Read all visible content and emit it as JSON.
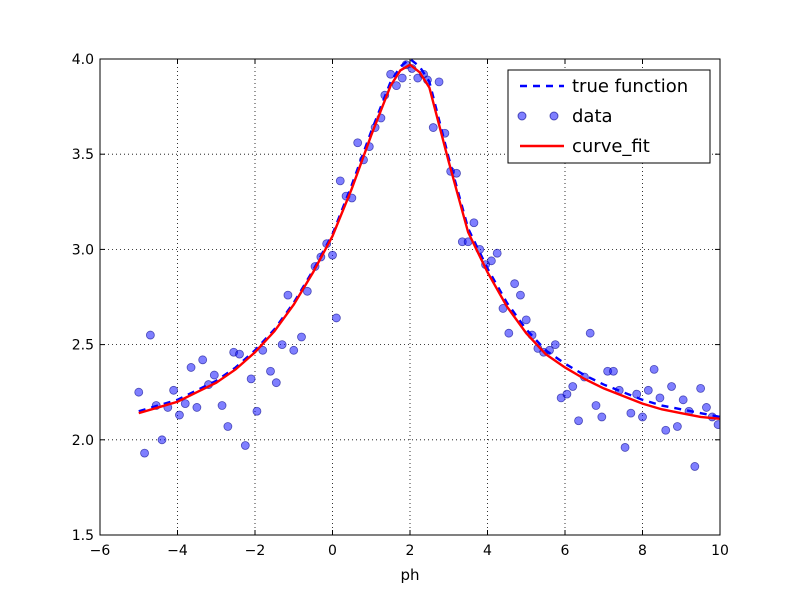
{
  "chart_data": {
    "type": "line",
    "title": "",
    "xlabel": "ph",
    "ylabel": "",
    "xlim": [
      -6,
      10
    ],
    "ylim": [
      1.5,
      4.0
    ],
    "xticks": [
      -6,
      -4,
      -2,
      0,
      2,
      4,
      6,
      8,
      10
    ],
    "xtick_labels": [
      "−6",
      "−4",
      "−2",
      "0",
      "2",
      "4",
      "6",
      "8",
      "10"
    ],
    "yticks": [
      1.5,
      2.0,
      2.5,
      3.0,
      3.5,
      4.0
    ],
    "ytick_labels": [
      "1.5",
      "2.0",
      "2.5",
      "3.0",
      "3.5",
      "4.0"
    ],
    "grid": true,
    "legend_position": "top-right",
    "series": [
      {
        "name": "true function",
        "style": "dashed-line",
        "color": "#0000ff",
        "x": [
          -5.0,
          -4.5,
          -4.0,
          -3.5,
          -3.0,
          -2.5,
          -2.0,
          -1.5,
          -1.0,
          -0.5,
          0.0,
          0.5,
          1.0,
          1.5,
          1.75,
          2.0,
          2.25,
          2.5,
          3.0,
          3.5,
          4.0,
          4.5,
          5.0,
          5.5,
          6.0,
          6.5,
          7.0,
          7.5,
          8.0,
          8.5,
          9.0,
          9.5,
          10.0
        ],
        "y": [
          2.15,
          2.18,
          2.21,
          2.26,
          2.31,
          2.38,
          2.47,
          2.58,
          2.72,
          2.89,
          3.08,
          3.34,
          3.62,
          3.88,
          3.96,
          4.0,
          3.96,
          3.88,
          3.48,
          3.11,
          2.9,
          2.72,
          2.58,
          2.47,
          2.4,
          2.34,
          2.29,
          2.25,
          2.21,
          2.18,
          2.16,
          2.14,
          2.12
        ]
      },
      {
        "name": "data",
        "style": "markers",
        "color": "#0000ff",
        "x": [
          -5.0,
          -4.85,
          -4.7,
          -4.55,
          -4.4,
          -4.25,
          -4.1,
          -3.95,
          -3.8,
          -3.65,
          -3.5,
          -3.35,
          -3.2,
          -3.05,
          -2.85,
          -2.7,
          -2.55,
          -2.4,
          -2.25,
          -2.1,
          -1.95,
          -1.8,
          -1.6,
          -1.45,
          -1.3,
          -1.15,
          -1.0,
          -0.8,
          -0.65,
          -0.45,
          -0.3,
          -0.15,
          0.0,
          0.1,
          0.2,
          0.35,
          0.5,
          0.65,
          0.8,
          0.95,
          1.1,
          1.25,
          1.35,
          1.5,
          1.65,
          1.8,
          1.9,
          2.05,
          2.2,
          2.35,
          2.45,
          2.6,
          2.75,
          2.9,
          3.05,
          3.2,
          3.35,
          3.5,
          3.65,
          3.8,
          3.95,
          4.1,
          4.25,
          4.4,
          4.55,
          4.7,
          4.85,
          5.0,
          5.15,
          5.3,
          5.45,
          5.6,
          5.75,
          5.9,
          6.05,
          6.2,
          6.35,
          6.5,
          6.65,
          6.8,
          6.95,
          7.1,
          7.25,
          7.4,
          7.55,
          7.7,
          7.85,
          8.0,
          8.15,
          8.3,
          8.45,
          8.6,
          8.75,
          8.9,
          9.05,
          9.2,
          9.35,
          9.5,
          9.65,
          9.8,
          9.95
        ],
        "y": [
          2.25,
          1.93,
          2.55,
          2.18,
          2.0,
          2.17,
          2.26,
          2.13,
          2.19,
          2.38,
          2.17,
          2.42,
          2.29,
          2.34,
          2.18,
          2.07,
          2.46,
          2.45,
          1.97,
          2.32,
          2.15,
          2.47,
          2.36,
          2.3,
          2.5,
          2.76,
          2.47,
          2.54,
          2.78,
          2.91,
          2.96,
          3.03,
          2.97,
          2.64,
          3.36,
          3.28,
          3.27,
          3.56,
          3.47,
          3.54,
          3.64,
          3.69,
          3.81,
          3.92,
          3.86,
          3.9,
          3.97,
          3.95,
          3.9,
          3.92,
          3.89,
          3.64,
          3.88,
          3.61,
          3.41,
          3.4,
          3.04,
          3.04,
          3.14,
          3.0,
          2.92,
          2.94,
          2.98,
          2.69,
          2.56,
          2.82,
          2.76,
          2.63,
          2.55,
          2.48,
          2.46,
          2.47,
          2.5,
          2.22,
          2.24,
          2.28,
          2.1,
          2.33,
          2.56,
          2.18,
          2.12,
          2.36,
          2.36,
          2.26,
          1.96,
          2.14,
          2.24,
          2.12,
          2.26,
          2.37,
          2.22,
          2.05,
          2.28,
          2.07,
          2.21,
          2.15,
          1.86,
          2.27,
          2.17,
          2.12,
          2.08
        ]
      },
      {
        "name": "curve_fit",
        "style": "solid-line",
        "color": "#ff0000",
        "x": [
          -5.0,
          -4.5,
          -4.0,
          -3.5,
          -3.0,
          -2.5,
          -2.0,
          -1.5,
          -1.0,
          -0.5,
          0.0,
          0.5,
          1.0,
          1.5,
          1.75,
          2.0,
          2.25,
          2.5,
          3.0,
          3.5,
          4.0,
          4.5,
          5.0,
          5.5,
          6.0,
          6.5,
          7.0,
          7.5,
          8.0,
          8.5,
          9.0,
          9.5,
          10.0
        ],
        "y": [
          2.14,
          2.17,
          2.2,
          2.25,
          2.3,
          2.37,
          2.46,
          2.57,
          2.71,
          2.88,
          3.07,
          3.32,
          3.6,
          3.86,
          3.94,
          3.97,
          3.93,
          3.85,
          3.46,
          3.09,
          2.88,
          2.7,
          2.56,
          2.45,
          2.38,
          2.32,
          2.27,
          2.23,
          2.19,
          2.16,
          2.14,
          2.12,
          2.11
        ]
      }
    ]
  }
}
